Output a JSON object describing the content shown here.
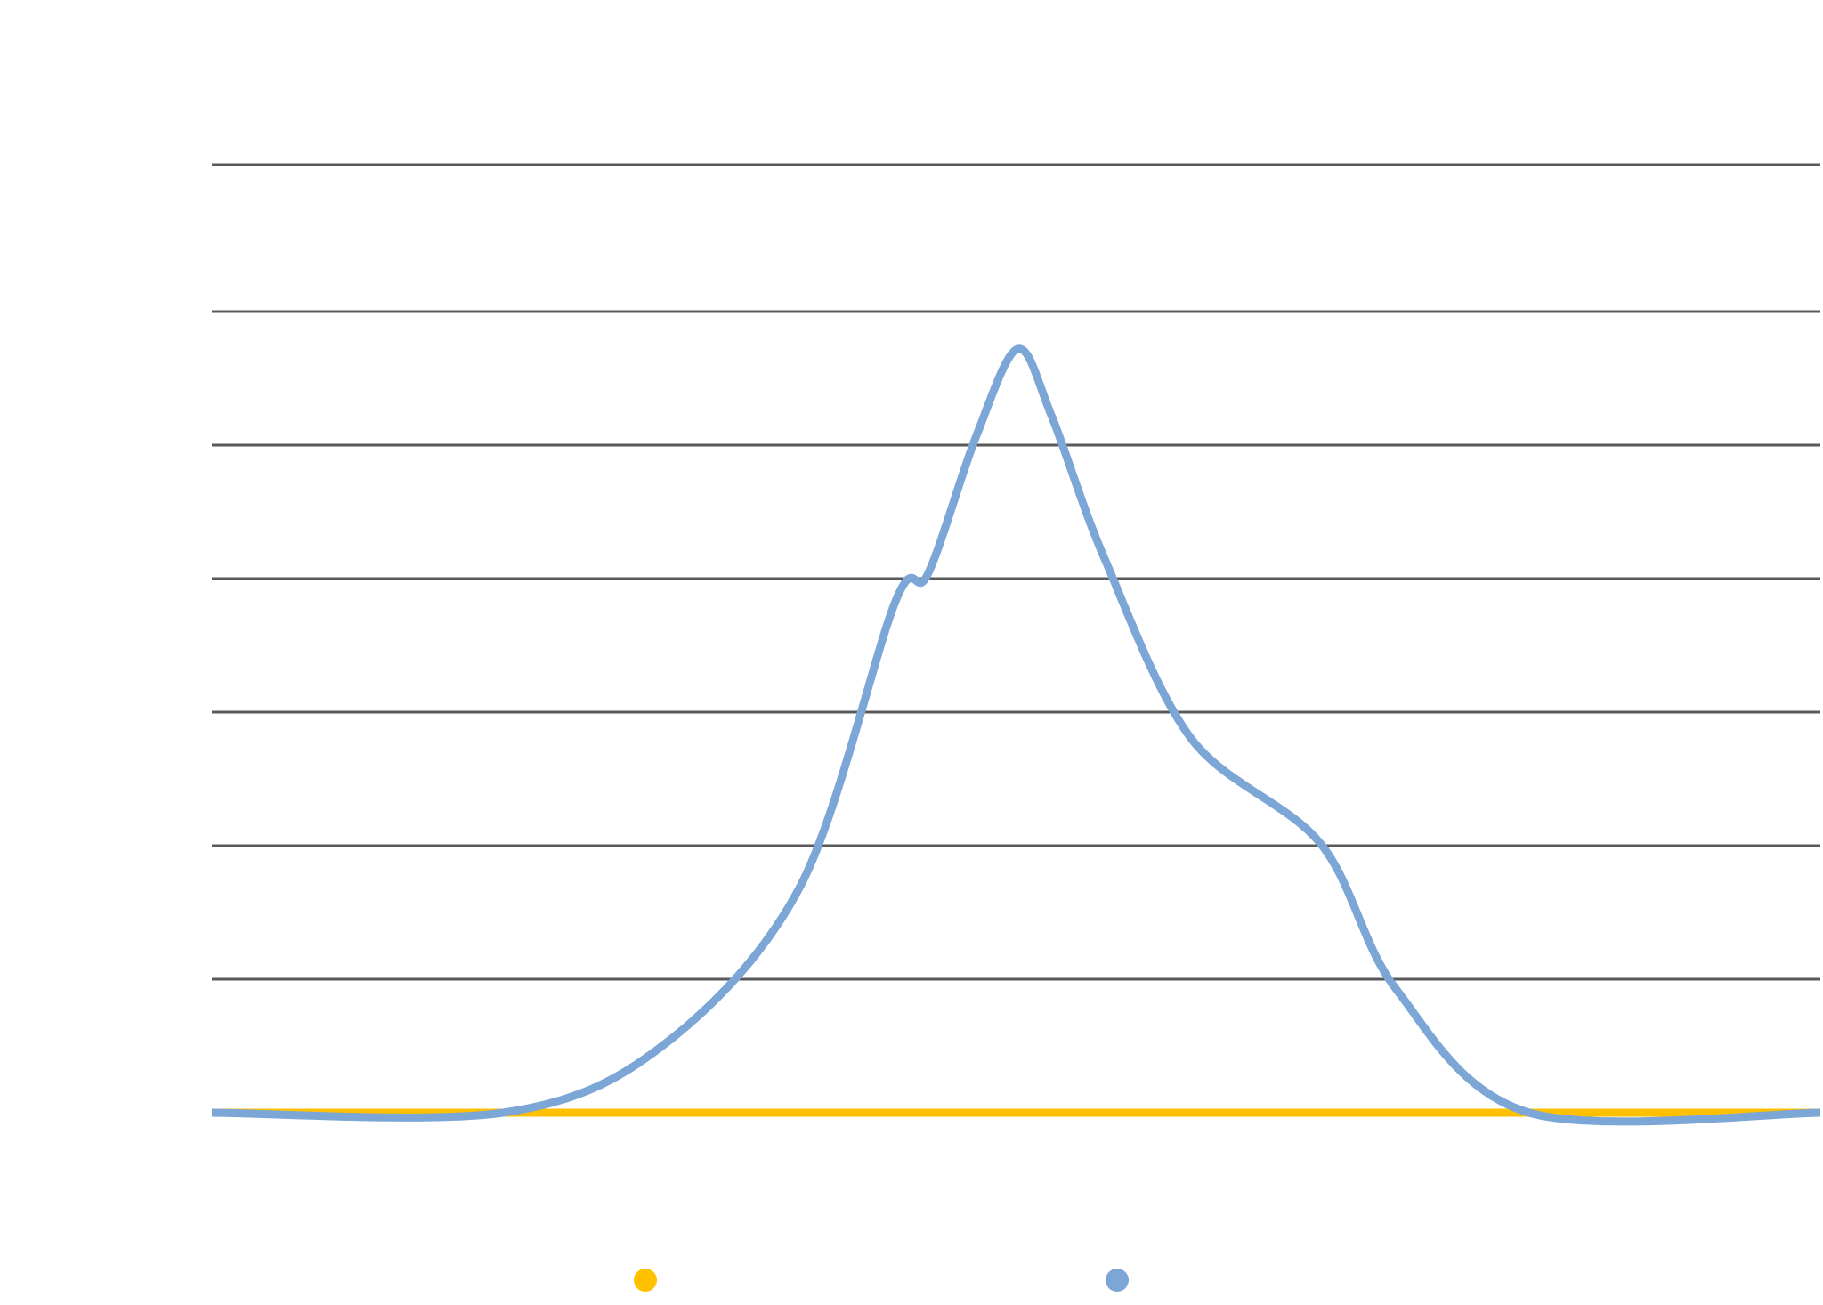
{
  "chart_data": {
    "type": "line",
    "title": "",
    "xlabel": "",
    "ylabel": "",
    "xlim": [
      0,
      100
    ],
    "ylim": [
      0,
      7
    ],
    "grid": true,
    "gridlines_y": [
      1,
      2,
      3,
      4,
      5,
      6,
      7.1
    ],
    "legend_placement": "bottom",
    "colors": {
      "grid": "#595959",
      "series_1": "#FFC000",
      "series_2": "#7BA6D6"
    },
    "series": [
      {
        "color": "#FFC000",
        "points": [
          [
            0,
            0
          ],
          [
            100,
            0
          ]
        ]
      },
      {
        "color": "#7BA6D6",
        "points": [
          [
            0,
            0
          ],
          [
            18.1,
            0
          ],
          [
            28,
            0.5
          ],
          [
            36.6,
            1.7
          ],
          [
            42.5,
            3.83
          ],
          [
            44.5,
            4.03
          ],
          [
            47.5,
            5.06
          ],
          [
            50.1,
            5.72
          ],
          [
            52.2,
            5.22
          ],
          [
            55.5,
            4.15
          ],
          [
            60.9,
            2.8
          ],
          [
            68.9,
            2.02
          ],
          [
            73.6,
            0.93
          ],
          [
            81.9,
            0
          ],
          [
            100,
            0
          ]
        ]
      }
    ]
  }
}
